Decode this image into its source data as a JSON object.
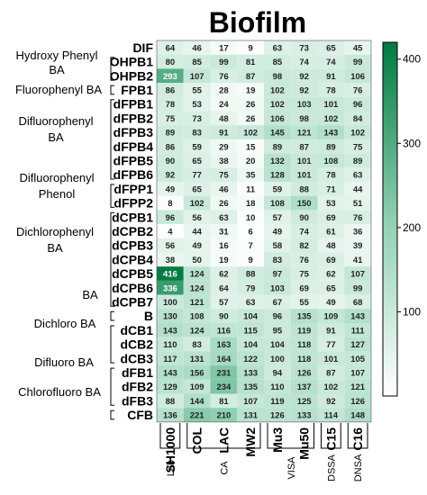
{
  "chart_data": {
    "type": "heatmap",
    "title": "Biofilm",
    "columns": [
      "SH1000",
      "COL",
      "LAC",
      "MW2",
      "Mu3",
      "Mu50",
      "C15",
      "C16"
    ],
    "rows": [
      "DIF",
      "OHPB1",
      "OHPB2",
      "FPB1",
      "dFPB1",
      "dFPB2",
      "dFPB3",
      "dFPB4",
      "dFPB5",
      "dFPB6",
      "dFPP1",
      "dFPP2",
      "dCPB1",
      "dCPB2",
      "dCPB3",
      "dCPB4",
      "dCPB5",
      "dCPB6",
      "dCPB7",
      "B",
      "dCB1",
      "dCB2",
      "dCB3",
      "dFB1",
      "dFB2",
      "dFB3",
      "CFB"
    ],
    "values": [
      [
        64,
        46,
        17,
        9,
        63,
        73,
        65,
        45
      ],
      [
        80,
        85,
        99,
        81,
        85,
        74,
        74,
        99
      ],
      [
        293,
        107,
        76,
        87,
        98,
        92,
        91,
        106
      ],
      [
        86,
        55,
        28,
        19,
        102,
        92,
        78,
        76
      ],
      [
        78,
        53,
        24,
        26,
        102,
        103,
        101,
        96
      ],
      [
        75,
        73,
        48,
        26,
        106,
        98,
        102,
        84
      ],
      [
        89,
        83,
        91,
        102,
        145,
        121,
        143,
        102
      ],
      [
        86,
        59,
        29,
        15,
        89,
        87,
        89,
        75
      ],
      [
        90,
        65,
        38,
        20,
        132,
        101,
        108,
        89
      ],
      [
        92,
        77,
        75,
        35,
        128,
        101,
        78,
        63
      ],
      [
        49,
        65,
        46,
        11,
        59,
        88,
        71,
        44
      ],
      [
        8,
        102,
        26,
        18,
        108,
        150,
        53,
        51
      ],
      [
        96,
        56,
        63,
        10,
        57,
        90,
        69,
        76
      ],
      [
        4,
        44,
        31,
        6,
        49,
        74,
        61,
        36
      ],
      [
        56,
        49,
        16,
        7,
        58,
        82,
        48,
        39
      ],
      [
        38,
        50,
        19,
        9,
        83,
        76,
        69,
        41
      ],
      [
        416,
        124,
        62,
        88,
        97,
        75,
        62,
        107
      ],
      [
        336,
        124,
        64,
        79,
        103,
        69,
        65,
        99
      ],
      [
        100,
        121,
        57,
        63,
        67,
        55,
        49,
        68
      ],
      [
        130,
        108,
        90,
        104,
        96,
        135,
        109,
        143
      ],
      [
        143,
        124,
        116,
        115,
        95,
        119,
        91,
        111
      ],
      [
        110,
        83,
        163,
        104,
        104,
        118,
        77,
        127
      ],
      [
        117,
        131,
        164,
        122,
        100,
        118,
        101,
        105
      ],
      [
        143,
        156,
        231,
        133,
        94,
        126,
        87,
        107
      ],
      [
        129,
        109,
        234,
        135,
        110,
        137,
        102,
        121
      ],
      [
        88,
        144,
        81,
        107,
        119,
        125,
        92,
        126
      ],
      [
        136,
        221,
        210,
        131,
        126,
        133,
        114,
        148
      ]
    ],
    "row_groups": [
      {
        "label": "Hydroxy Phenyl BA",
        "rows": [
          "OHPB1",
          "OHPB2"
        ]
      },
      {
        "label": "Fluorophenyl BA",
        "rows": [
          "FPB1"
        ]
      },
      {
        "label": "Difluorophenyl BA",
        "rows": [
          "dFPB1",
          "dFPB2",
          "dFPB3",
          "dFPB4",
          "dFPB5",
          "dFPB6"
        ]
      },
      {
        "label": "Difluorophenyl Phenol",
        "rows": [
          "dFPP1",
          "dFPP2"
        ]
      },
      {
        "label": "Dichlorophenyl BA",
        "rows": [
          "dCPB1",
          "dCPB2",
          "dCPB3",
          "dCPB4",
          "dCPB5",
          "dCPB6",
          "dCPB7"
        ]
      },
      {
        "label": "BA",
        "rows": [
          "B"
        ]
      },
      {
        "label": "Dichloro BA",
        "rows": [
          "dCB1",
          "dCB2",
          "dCB3"
        ]
      },
      {
        "label": "Difluoro BA",
        "rows": [
          "dFB1",
          "dFB2",
          "dFB3"
        ]
      },
      {
        "label": "Chlorofluoro BA",
        "rows": [
          "CFB"
        ]
      }
    ],
    "column_groups": [
      {
        "label": "Lab",
        "columns": [
          "SH1000"
        ]
      },
      {
        "label": "CA",
        "columns": [
          "COL",
          "LAC",
          "MW2"
        ]
      },
      {
        "label": "VISA",
        "columns": [
          "Mu3",
          "Mu50"
        ]
      },
      {
        "label": "DSSA",
        "columns": [
          "C15"
        ]
      },
      {
        "label": "DNSA",
        "columns": [
          "C16"
        ]
      }
    ],
    "colorbar": {
      "range": [
        0,
        420
      ],
      "ticks": [
        100,
        200,
        300,
        400
      ],
      "colors": {
        "low": "#ffffff",
        "mid": "#8fd0b2",
        "high": "#007a40"
      }
    }
  }
}
